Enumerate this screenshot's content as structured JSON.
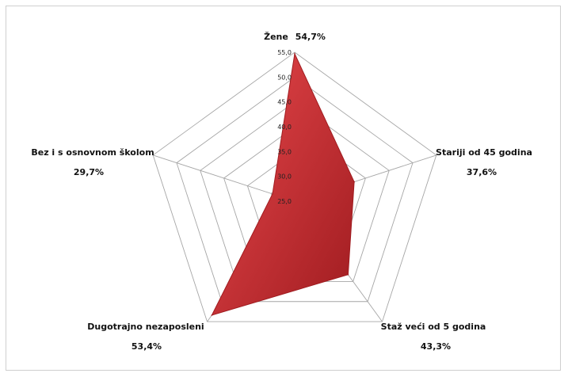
{
  "chart_data": {
    "type": "radar",
    "title": "",
    "categories": [
      "Žene",
      "Stariji od 45 godina",
      "Staž veći od 5 godina",
      "Dugotrajno nezaposleni",
      "Bez i s osnovnom školom"
    ],
    "value_labels": [
      "54,7%",
      "37,6%",
      "43,3%",
      "53,4%",
      "29,7%"
    ],
    "series": [
      {
        "values": [
          54.7,
          37.6,
          43.3,
          53.4,
          29.7
        ],
        "color": "#c8262a",
        "color_light": "#e8484c",
        "color_dark": "#a01c20"
      }
    ],
    "rlim": [
      25,
      55
    ],
    "ticks": [
      25,
      30,
      35,
      40,
      45,
      50,
      55
    ],
    "tick_labels": [
      "25,0",
      "30,0",
      "35,0",
      "40,0",
      "45,0",
      "50,0",
      "55,0"
    ],
    "grid": true,
    "legend": "none"
  }
}
